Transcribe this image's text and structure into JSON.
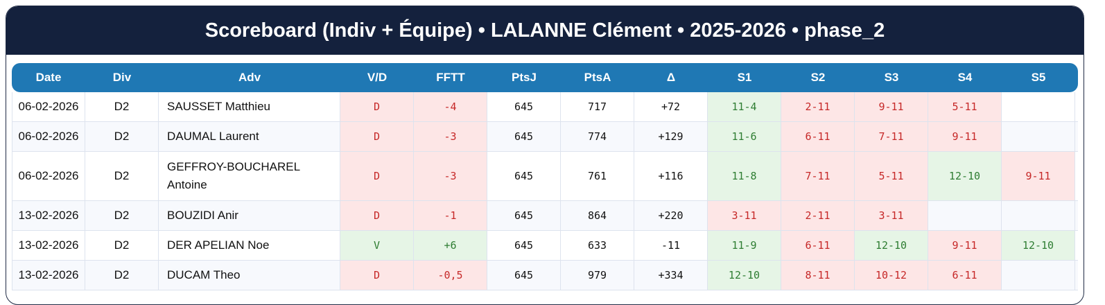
{
  "title": "Scoreboard (Indiv + Équipe) • LALANNE Clément • 2025-2026 • phase_2",
  "columns": [
    "Date",
    "Div",
    "Adv",
    "V/D",
    "FFTT",
    "PtsJ",
    "PtsA",
    "Δ",
    "S1",
    "S2",
    "S3",
    "S4",
    "S5"
  ],
  "rows": [
    {
      "date": "06-02-2026",
      "div": "D2",
      "adv": "SAUSSET Matthieu",
      "vd": "D",
      "fftt": "-4",
      "ptsj": "645",
      "ptsa": "717",
      "delta": "+72",
      "sets": [
        "11-4",
        "2-11",
        "9-11",
        "5-11",
        ""
      ]
    },
    {
      "date": "06-02-2026",
      "div": "D2",
      "adv": "DAUMAL Laurent",
      "vd": "D",
      "fftt": "-3",
      "ptsj": "645",
      "ptsa": "774",
      "delta": "+129",
      "sets": [
        "11-6",
        "6-11",
        "7-11",
        "9-11",
        ""
      ]
    },
    {
      "date": "06-02-2026",
      "div": "D2",
      "adv": "GEFFROY-BOUCHAREL Antoine",
      "vd": "D",
      "fftt": "-3",
      "ptsj": "645",
      "ptsa": "761",
      "delta": "+116",
      "sets": [
        "11-8",
        "7-11",
        "5-11",
        "12-10",
        "9-11"
      ]
    },
    {
      "date": "13-02-2026",
      "div": "D2",
      "adv": "BOUZIDI Anir",
      "vd": "D",
      "fftt": "-1",
      "ptsj": "645",
      "ptsa": "864",
      "delta": "+220",
      "sets": [
        "3-11",
        "2-11",
        "3-11",
        "",
        ""
      ]
    },
    {
      "date": "13-02-2026",
      "div": "D2",
      "adv": "DER APELIAN Noe",
      "vd": "V",
      "fftt": "+6",
      "ptsj": "645",
      "ptsa": "633",
      "delta": "-11",
      "sets": [
        "11-9",
        "6-11",
        "12-10",
        "9-11",
        "12-10"
      ]
    },
    {
      "date": "13-02-2026",
      "div": "D2",
      "adv": "DUCAM Theo",
      "vd": "D",
      "fftt": "-0,5",
      "ptsj": "645",
      "ptsa": "979",
      "delta": "+334",
      "sets": [
        "12-10",
        "8-11",
        "10-12",
        "6-11",
        ""
      ]
    }
  ],
  "colors": {
    "banner": "#14213d",
    "header": "#1f78b4",
    "win": "#2e7d32",
    "loss": "#c62828"
  }
}
